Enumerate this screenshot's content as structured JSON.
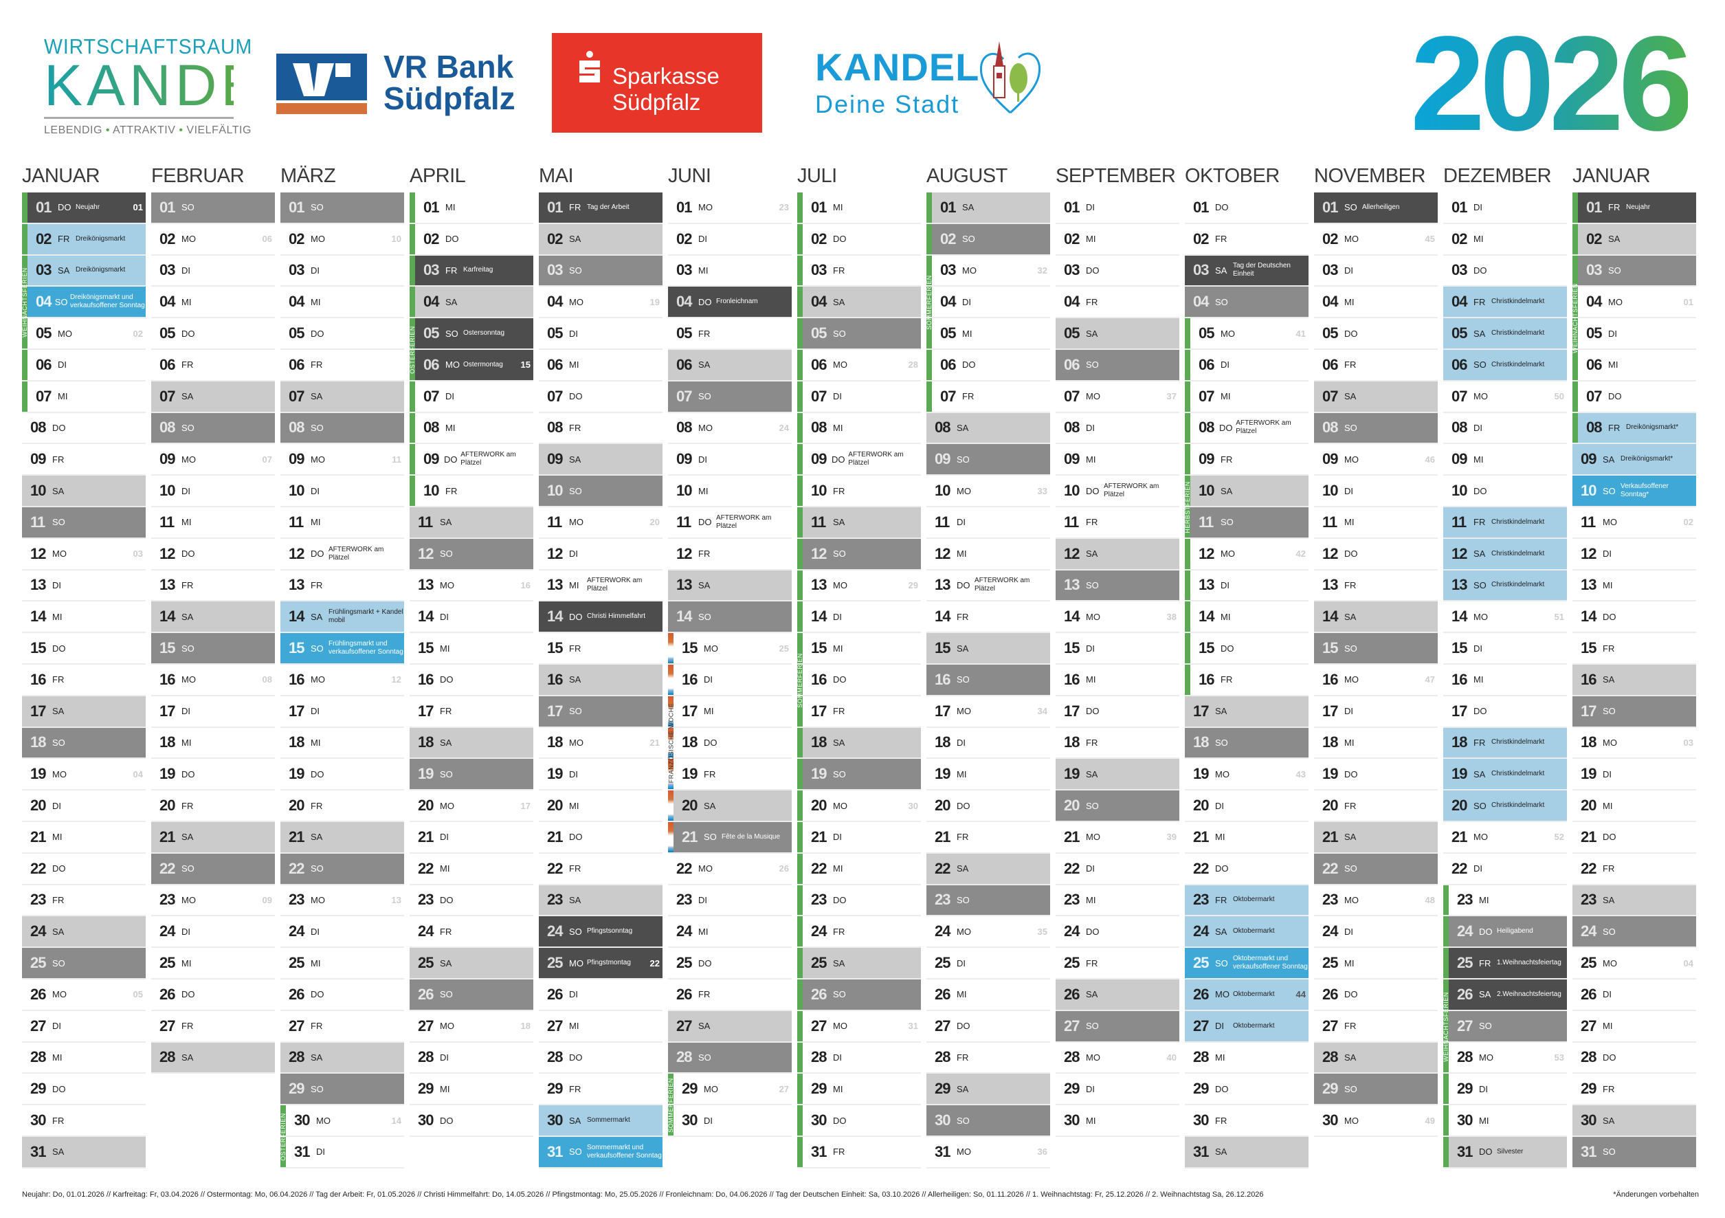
{
  "header": {
    "logo_wirtschaftsraum": {
      "line1": "WIRTSCHAFTSRAUM",
      "line2": "KANDEL",
      "tagline": [
        "LEBENDIG",
        "ATTRAKTIV",
        "VIELFÄLTIG"
      ]
    },
    "logo_vr_bank": {
      "line1": "VR Bank",
      "line2": "Südpfalz",
      "colors": {
        "blue": "#1b5a99",
        "orange": "#d4703a"
      }
    },
    "logo_sparkasse": {
      "line1": "Sparkasse",
      "line2": "Südpfalz",
      "color": "#e8352a"
    },
    "logo_kandel": {
      "line1": "KANDEL",
      "line2": "Deine Stadt",
      "color": "#1a9bd7"
    },
    "year": "2026"
  },
  "colors": {
    "holiday": "#4d4d4d",
    "sunday": "#8b8b8b",
    "saturday": "#cbcbcb",
    "event": "#a6cfe6",
    "event_sunday": "#3fa8d6",
    "vacation": "#5aa955",
    "french_week": [
      "#d35a2f",
      "#0a7fbf"
    ]
  },
  "weekdays": [
    "MO",
    "DI",
    "MI",
    "DO",
    "FR",
    "SA",
    "SO"
  ],
  "months": [
    {
      "name": "JANUAR",
      "first_weekday": "DO",
      "length": 31,
      "kw": {
        "01": "01",
        "05": "02",
        "12": "03",
        "19": "04",
        "26": "05"
      },
      "notes": {
        "01": {
          "t": "h",
          "n": "Neujahr"
        },
        "02": {
          "t": "e",
          "n": "Dreikönigsmarkt"
        },
        "03": {
          "t": "e",
          "n": "Dreikönigsmarkt"
        },
        "04": {
          "t": "es",
          "n": "Dreikönigsmarkt und verkaufsoffener Sonntag"
        }
      },
      "vacations": [
        {
          "from": 1,
          "to": 7,
          "label": "WEIHNACHTSFERIEN"
        }
      ]
    },
    {
      "name": "FEBRUAR",
      "first_weekday": "SO",
      "length": 28,
      "kw": {
        "02": "06",
        "09": "07",
        "16": "08",
        "23": "09"
      },
      "notes": {},
      "vacations": []
    },
    {
      "name": "MÄRZ",
      "first_weekday": "SO",
      "length": 31,
      "kw": {
        "02": "10",
        "09": "11",
        "16": "12",
        "23": "13",
        "30": "14"
      },
      "notes": {
        "12": {
          "n": "AFTERWORK am Plätzel"
        },
        "14": {
          "t": "e",
          "n": "Frühlingsmarkt + Kandel mobil"
        },
        "15": {
          "t": "es",
          "n": "Frühlingsmarkt und verkaufsoffener Sonntag"
        }
      },
      "vacations": [
        {
          "from": 30,
          "to": 31,
          "label": "OSTERFERIEN"
        }
      ]
    },
    {
      "name": "APRIL",
      "first_weekday": "MI",
      "length": 30,
      "kw": {
        "06": "15",
        "13": "16",
        "20": "17",
        "27": "18"
      },
      "notes": {
        "03": {
          "t": "h",
          "n": "Karfreitag"
        },
        "05": {
          "t": "h",
          "n": "Ostersonntag"
        },
        "06": {
          "t": "h",
          "n": "Ostermontag"
        },
        "09": {
          "n": "AFTERWORK am Plätzel"
        }
      },
      "vacations": [
        {
          "from": 1,
          "to": 10,
          "label": "OSTERFERIEN"
        }
      ]
    },
    {
      "name": "MAI",
      "first_weekday": "FR",
      "length": 31,
      "kw": {
        "04": "19",
        "11": "20",
        "18": "21",
        "25": "22"
      },
      "notes": {
        "01": {
          "t": "h",
          "n": "Tag der Arbeit"
        },
        "13": {
          "n": "AFTERWORK am Plätzel"
        },
        "14": {
          "t": "h",
          "n": "Christi Himmelfahrt"
        },
        "24": {
          "t": "h",
          "n": "Pfingstsonntag"
        },
        "25": {
          "t": "h",
          "n": "Pfingstmontag"
        },
        "30": {
          "t": "e",
          "n": "Sommermarkt"
        },
        "31": {
          "t": "es",
          "n": "Sommermarkt und verkaufsoffener Sonntag"
        }
      },
      "vacations": []
    },
    {
      "name": "JUNI",
      "first_weekday": "MO",
      "length": 30,
      "kw": {
        "01": "23",
        "08": "24",
        "15": "25",
        "22": "26",
        "29": "27"
      },
      "notes": {
        "04": {
          "t": "h",
          "n": "Fronleichnam"
        },
        "11": {
          "n": "AFTERWORK am Plätzel"
        },
        "21": {
          "n": "Fête de la Musique"
        }
      },
      "vacations": [
        {
          "from": 15,
          "to": 21,
          "label": "FRANZÖSISCHE WOCHE",
          "kind": "french"
        },
        {
          "from": 29,
          "to": 30,
          "label": "SOMMERFERIEN"
        }
      ]
    },
    {
      "name": "JULI",
      "first_weekday": "MI",
      "length": 31,
      "kw": {
        "06": "28",
        "13": "29",
        "20": "30",
        "27": "31"
      },
      "notes": {
        "09": {
          "n": "AFTERWORK am Plätzel"
        }
      },
      "vacations": [
        {
          "from": 1,
          "to": 31,
          "label": "SOMMERFERIEN"
        }
      ]
    },
    {
      "name": "AUGUST",
      "first_weekday": "SA",
      "length": 31,
      "kw": {
        "03": "32",
        "10": "33",
        "17": "34",
        "24": "35",
        "31": "36"
      },
      "notes": {
        "13": {
          "n": "AFTERWORK am Plätzel"
        }
      },
      "vacations": [
        {
          "from": 1,
          "to": 7,
          "label": "SOMMERFERIEN"
        }
      ]
    },
    {
      "name": "SEPTEMBER",
      "first_weekday": "DI",
      "length": 30,
      "kw": {
        "07": "37",
        "14": "38",
        "21": "39",
        "28": "40"
      },
      "notes": {
        "10": {
          "n": "AFTERWORK am Plätzel"
        }
      },
      "vacations": []
    },
    {
      "name": "OKTOBER",
      "first_weekday": "DO",
      "length": 31,
      "kw": {
        "05": "41",
        "12": "42",
        "19": "43",
        "26": "44"
      },
      "notes": {
        "03": {
          "t": "h",
          "n": "Tag der Deutschen Einheit"
        },
        "08": {
          "n": "AFTERWORK am Plätzel"
        },
        "23": {
          "t": "e",
          "n": "Oktobermarkt"
        },
        "24": {
          "t": "e",
          "n": "Oktobermarkt"
        },
        "25": {
          "t": "es",
          "n": "Oktobermarkt und verkaufsoffener Sonntag"
        },
        "26": {
          "t": "e",
          "n": "Oktobermarkt"
        },
        "27": {
          "t": "e",
          "n": "Oktobermarkt"
        }
      },
      "vacations": [
        {
          "from": 5,
          "to": 16,
          "label": "HERBSTFERIEN"
        }
      ]
    },
    {
      "name": "NOVEMBER",
      "first_weekday": "SO",
      "length": 30,
      "kw": {
        "02": "45",
        "09": "46",
        "16": "47",
        "23": "48",
        "30": "49"
      },
      "notes": {
        "01": {
          "t": "h",
          "n": "Allerheiligen"
        }
      },
      "vacations": []
    },
    {
      "name": "DEZEMBER",
      "first_weekday": "DI",
      "length": 31,
      "kw": {
        "07": "50",
        "14": "51",
        "21": "52",
        "28": "53"
      },
      "notes": {
        "04": {
          "t": "e",
          "n": "Christkindelmarkt"
        },
        "05": {
          "t": "e",
          "n": "Christkindelmarkt"
        },
        "06": {
          "t": "e",
          "n": "Christkindelmarkt"
        },
        "11": {
          "t": "e",
          "n": "Christkindelmarkt"
        },
        "12": {
          "t": "e",
          "n": "Christkindelmarkt"
        },
        "13": {
          "t": "e",
          "n": "Christkindelmarkt"
        },
        "18": {
          "t": "e",
          "n": "Christkindelmarkt"
        },
        "19": {
          "t": "e",
          "n": "Christkindelmarkt"
        },
        "20": {
          "t": "e",
          "n": "Christkindelmarkt"
        },
        "24": {
          "t": "g",
          "n": "Heiligabend"
        },
        "25": {
          "t": "h",
          "n": "1.Weihnachtsfeiertag"
        },
        "26": {
          "t": "h",
          "n": "2.Weihnachtsfeiertag"
        },
        "31": {
          "t": "l",
          "n": "Silvester"
        }
      },
      "vacations": [
        {
          "from": 23,
          "to": 31,
          "label": "WEIHNACHTSFERIEN"
        }
      ]
    },
    {
      "name": "JANUAR",
      "first_weekday": "FR",
      "length": 31,
      "kw": {
        "04": "01",
        "11": "02",
        "18": "03",
        "25": "04"
      },
      "notes": {
        "01": {
          "t": "h",
          "n": "Neujahr"
        },
        "08": {
          "t": "e",
          "n": "Dreikönigsmarkt*"
        },
        "09": {
          "t": "e",
          "n": "Dreikönigsmarkt*"
        },
        "10": {
          "t": "es",
          "n": "Verkaufsoffener Sonntag*"
        }
      },
      "vacations": [
        {
          "from": 1,
          "to": 8,
          "label": "WEIHNACHTSFERIEN"
        }
      ]
    }
  ],
  "footer": {
    "holidays": "Neujahr: Do, 01.01.2026 // Karfreitag: Fr, 03.04.2026 // Ostermontag: Mo, 06.04.2026 // Tag der Arbeit: Fr, 01.05.2026 // Christi Himmelfahrt: Do, 14.05.2026 // Pfingstmontag: Mo, 25.05.2026 // Fronleichnam: Do, 04.06.2026 // Tag der Deutschen Einheit: Sa, 03.10.2026 // Allerheiligen: So, 01.11.2026 // 1. Weihnachtstag: Fr, 25.12.2026 // 2. Weihnachtstag Sa, 26.12.2026",
    "note": "*Änderungen vorbehalten"
  }
}
